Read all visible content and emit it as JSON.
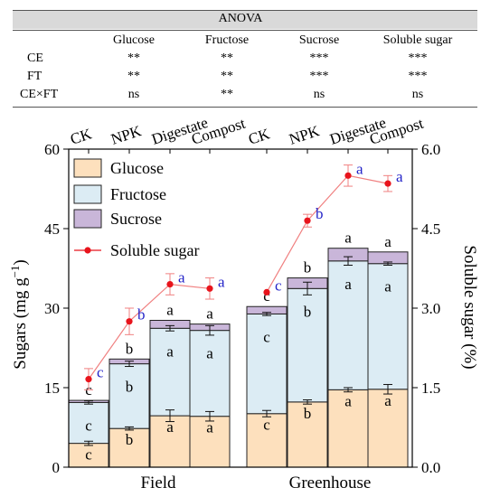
{
  "anova": {
    "title": "ANOVA",
    "columns": [
      "Glucose",
      "Fructose",
      "Sucrose",
      "Soluble sugar"
    ],
    "rows": [
      {
        "label": "CE",
        "values": [
          "**",
          "**",
          "***",
          "***"
        ]
      },
      {
        "label": "FT",
        "values": [
          "**",
          "**",
          "***",
          "***"
        ]
      },
      {
        "label": "CE×FT",
        "values": [
          "ns",
          "**",
          "ns",
          "ns"
        ]
      }
    ]
  },
  "chart_data": {
    "type": "bar",
    "stacked": true,
    "groups": [
      "Field",
      "Greenhouse"
    ],
    "categories": [
      "CK",
      "NPK",
      "Digestate",
      "Compost",
      "CK",
      "NPK",
      "Digestate",
      "Compost"
    ],
    "ylabel_left_main": "Sugars (mg g",
    "ylabel_left_sup": "−1",
    "ylabel_left_end": ")",
    "ylabel_right": "Soluble sugar (%)",
    "ylim_left": [
      0,
      60
    ],
    "yticks_left": [
      "0",
      "15",
      "30",
      "45",
      "60"
    ],
    "ylim_right": [
      0,
      6
    ],
    "yticks_right": [
      "0.0",
      "1.5",
      "3.0",
      "4.5",
      "6.0"
    ],
    "legend": {
      "placement": "top-left",
      "entries": [
        "Glucose",
        "Fructose",
        "Sucrose",
        "Soluble sugar"
      ]
    },
    "colors": {
      "Glucose": "#fde0bd",
      "Fructose": "#dcecf4",
      "Sucrose": "#c9b6d9",
      "line": "#e8141c",
      "line_thin": "#f08080",
      "letters_line": "#2323c8"
    },
    "series": [
      {
        "name": "Glucose",
        "values": [
          4.5,
          7.3,
          9.7,
          9.6,
          10.1,
          12.3,
          14.6,
          14.7
        ],
        "errors": [
          0.4,
          0.3,
          1.1,
          0.9,
          0.6,
          0.4,
          0.4,
          0.9
        ],
        "letters": [
          "c",
          "b",
          "a",
          "a",
          "c",
          "b",
          "a",
          "a"
        ]
      },
      {
        "name": "Fructose",
        "values": [
          7.7,
          12.2,
          16.5,
          16.2,
          18.8,
          21.4,
          24.3,
          23.7
        ],
        "errors": [
          0.3,
          0.5,
          0.5,
          0.9,
          0.3,
          1.2,
          0.8,
          0.3
        ],
        "letters": [
          "c",
          "b",
          "a",
          "a",
          "c",
          "b",
          "a",
          "a"
        ]
      },
      {
        "name": "Sucrose",
        "values": [
          0.4,
          0.9,
          1.5,
          1.2,
          1.4,
          2.0,
          2.4,
          2.2
        ],
        "letters": [
          "c",
          "b",
          "a",
          "a",
          "c",
          "b",
          "a",
          "a"
        ]
      },
      {
        "name": "Soluble sugar",
        "axis": "right",
        "values": [
          1.66,
          2.75,
          3.45,
          3.37,
          3.3,
          4.65,
          5.5,
          5.35
        ],
        "errors": [
          0.2,
          0.25,
          0.2,
          0.2,
          0.0,
          0.12,
          0.2,
          0.15
        ],
        "letters": [
          "c",
          "b",
          "a",
          "a",
          "c",
          "b",
          "a",
          "a"
        ]
      }
    ]
  }
}
